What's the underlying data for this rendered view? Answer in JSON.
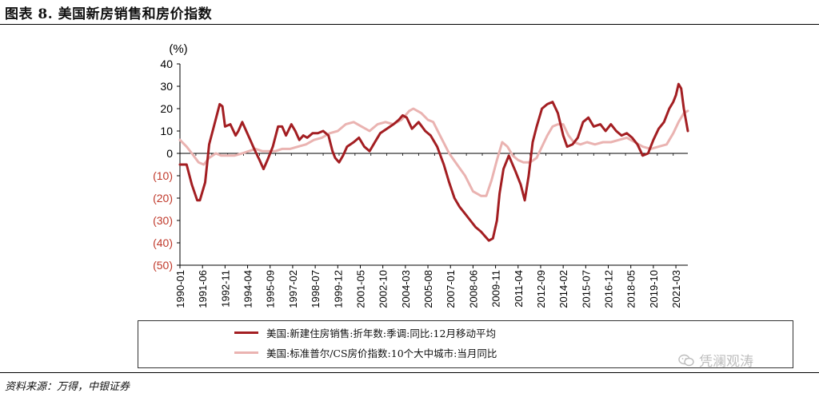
{
  "title": "图表 8. 美国新房销售和房价指数",
  "source": "资料来源：万得，中银证券",
  "watermark": "凭澜观涛",
  "colors": {
    "series1": "#a31e22",
    "series2": "#eab3b1",
    "negative_tick": "#c0392b"
  },
  "chart_data": {
    "type": "line",
    "unit_label": "(%)",
    "ylim": [
      -50,
      40
    ],
    "yticks": [
      40,
      30,
      20,
      10,
      0,
      -10,
      -20,
      -30,
      -40,
      -50
    ],
    "ytick_labels": [
      "40",
      "30",
      "20",
      "10",
      "0",
      "(10)",
      "(20)",
      "(30)",
      "(40)",
      "(50)"
    ],
    "xlim": [
      "1990-01",
      "2021-12"
    ],
    "xtick_labels": [
      "1990-01",
      "1991-06",
      "1992-11",
      "1994-04",
      "1995-09",
      "1997-02",
      "1998-07",
      "1999-12",
      "2001-05",
      "2002-10",
      "2004-03",
      "2005-08",
      "2007-01",
      "2008-06",
      "2009-11",
      "2011-04",
      "2012-09",
      "2014-02",
      "2015-07",
      "2016-12",
      "2018-05",
      "2019-10",
      "2021-03"
    ],
    "grid": false,
    "legend_position": "bottom",
    "series": [
      {
        "name": "美国:新建住房销售:折年数:季调:同比:12月移动平均",
        "points": [
          [
            "1990-01",
            -5
          ],
          [
            "1990-06",
            -5
          ],
          [
            "1990-10",
            -14
          ],
          [
            "1991-02",
            -21
          ],
          [
            "1991-04",
            -21
          ],
          [
            "1991-08",
            -13
          ],
          [
            "1991-11",
            4
          ],
          [
            "1992-03",
            13
          ],
          [
            "1992-07",
            22
          ],
          [
            "1992-09",
            21
          ],
          [
            "1992-11",
            12
          ],
          [
            "1993-03",
            13
          ],
          [
            "1993-07",
            8
          ],
          [
            "1993-09",
            10
          ],
          [
            "1993-12",
            14
          ],
          [
            "1994-03",
            10
          ],
          [
            "1994-06",
            6
          ],
          [
            "1994-09",
            2
          ],
          [
            "1995-01",
            -3
          ],
          [
            "1995-04",
            -7
          ],
          [
            "1995-07",
            -3
          ],
          [
            "1995-11",
            3
          ],
          [
            "1996-03",
            12
          ],
          [
            "1996-06",
            12
          ],
          [
            "1996-09",
            8
          ],
          [
            "1997-01",
            13
          ],
          [
            "1997-04",
            10
          ],
          [
            "1997-07",
            6
          ],
          [
            "1997-10",
            8
          ],
          [
            "1998-01",
            7
          ],
          [
            "1998-05",
            9
          ],
          [
            "1998-09",
            9
          ],
          [
            "1999-01",
            10
          ],
          [
            "1999-05",
            8
          ],
          [
            "1999-08",
            1
          ],
          [
            "1999-10",
            -2
          ],
          [
            "2000-01",
            -4
          ],
          [
            "2000-04",
            -1
          ],
          [
            "2000-07",
            3
          ],
          [
            "2000-12",
            5
          ],
          [
            "2001-04",
            7
          ],
          [
            "2001-08",
            3
          ],
          [
            "2001-12",
            1
          ],
          [
            "2002-04",
            5
          ],
          [
            "2002-08",
            9
          ],
          [
            "2003-01",
            11
          ],
          [
            "2003-06",
            13
          ],
          [
            "2003-10",
            15
          ],
          [
            "2004-01",
            17
          ],
          [
            "2004-04",
            16
          ],
          [
            "2004-08",
            11
          ],
          [
            "2005-01",
            14
          ],
          [
            "2005-06",
            10
          ],
          [
            "2005-10",
            8
          ],
          [
            "2006-03",
            3
          ],
          [
            "2006-08",
            -5
          ],
          [
            "2006-12",
            -13
          ],
          [
            "2007-04",
            -20
          ],
          [
            "2007-08",
            -24
          ],
          [
            "2007-12",
            -27
          ],
          [
            "2008-04",
            -30
          ],
          [
            "2008-08",
            -33
          ],
          [
            "2008-12",
            -35
          ],
          [
            "2009-03",
            -37
          ],
          [
            "2009-06",
            -39
          ],
          [
            "2009-09",
            -38
          ],
          [
            "2009-12",
            -30
          ],
          [
            "2010-02",
            -18
          ],
          [
            "2010-05",
            -7
          ],
          [
            "2010-09",
            -1
          ],
          [
            "2011-02",
            -8
          ],
          [
            "2011-06",
            -14
          ],
          [
            "2011-09",
            -21
          ],
          [
            "2011-12",
            -10
          ],
          [
            "2012-03",
            5
          ],
          [
            "2012-06",
            12
          ],
          [
            "2012-10",
            20
          ],
          [
            "2013-02",
            22
          ],
          [
            "2013-06",
            23
          ],
          [
            "2013-10",
            18
          ],
          [
            "2014-02",
            8
          ],
          [
            "2014-05",
            3
          ],
          [
            "2014-09",
            4
          ],
          [
            "2015-01",
            7
          ],
          [
            "2015-05",
            14
          ],
          [
            "2015-09",
            16
          ],
          [
            "2016-01",
            12
          ],
          [
            "2016-06",
            13
          ],
          [
            "2016-10",
            10
          ],
          [
            "2017-02",
            13
          ],
          [
            "2017-06",
            10
          ],
          [
            "2017-10",
            8
          ],
          [
            "2018-02",
            9
          ],
          [
            "2018-06",
            7
          ],
          [
            "2018-10",
            4
          ],
          [
            "2019-02",
            -1
          ],
          [
            "2019-06",
            0
          ],
          [
            "2019-10",
            6
          ],
          [
            "2020-02",
            11
          ],
          [
            "2020-06",
            14
          ],
          [
            "2020-10",
            20
          ],
          [
            "2021-01",
            23
          ],
          [
            "2021-03",
            26
          ],
          [
            "2021-05",
            31
          ],
          [
            "2021-07",
            29
          ],
          [
            "2021-09",
            20
          ],
          [
            "2021-12",
            10
          ]
        ]
      },
      {
        "name": "美国:标准普尔/CS房价指数:10个大中城市:当月同比",
        "points": [
          [
            "1990-01",
            6
          ],
          [
            "1990-06",
            3
          ],
          [
            "1990-10",
            0
          ],
          [
            "1991-03",
            -4
          ],
          [
            "1991-07",
            -5
          ],
          [
            "1991-11",
            -2
          ],
          [
            "1992-04",
            0
          ],
          [
            "1992-08",
            -1
          ],
          [
            "1993-01",
            -1
          ],
          [
            "1993-06",
            -1
          ],
          [
            "1993-12",
            0
          ],
          [
            "1994-05",
            1
          ],
          [
            "1994-10",
            2
          ],
          [
            "1995-03",
            1
          ],
          [
            "1995-08",
            1
          ],
          [
            "1996-01",
            1
          ],
          [
            "1996-06",
            2
          ],
          [
            "1996-12",
            2
          ],
          [
            "1997-06",
            3
          ],
          [
            "1997-12",
            4
          ],
          [
            "1998-06",
            6
          ],
          [
            "1998-12",
            7
          ],
          [
            "1999-06",
            9
          ],
          [
            "1999-12",
            10
          ],
          [
            "2000-06",
            13
          ],
          [
            "2000-12",
            14
          ],
          [
            "2001-06",
            12
          ],
          [
            "2001-12",
            10
          ],
          [
            "2002-06",
            13
          ],
          [
            "2002-12",
            14
          ],
          [
            "2003-06",
            13
          ],
          [
            "2003-12",
            15
          ],
          [
            "2004-03",
            17
          ],
          [
            "2004-06",
            19
          ],
          [
            "2004-09",
            20
          ],
          [
            "2005-03",
            18
          ],
          [
            "2005-08",
            15
          ],
          [
            "2005-12",
            14
          ],
          [
            "2006-06",
            7
          ],
          [
            "2006-12",
            0
          ],
          [
            "2007-06",
            -5
          ],
          [
            "2007-12",
            -10
          ],
          [
            "2008-06",
            -17
          ],
          [
            "2008-12",
            -19
          ],
          [
            "2009-04",
            -19
          ],
          [
            "2009-08",
            -12
          ],
          [
            "2009-12",
            -3
          ],
          [
            "2010-04",
            5
          ],
          [
            "2010-08",
            3
          ],
          [
            "2010-12",
            -1
          ],
          [
            "2011-04",
            -3
          ],
          [
            "2011-08",
            -4
          ],
          [
            "2012-01",
            -4
          ],
          [
            "2012-06",
            -2
          ],
          [
            "2012-10",
            3
          ],
          [
            "2013-02",
            8
          ],
          [
            "2013-06",
            12
          ],
          [
            "2013-10",
            13
          ],
          [
            "2014-02",
            13
          ],
          [
            "2014-06",
            8
          ],
          [
            "2014-10",
            5
          ],
          [
            "2015-03",
            4
          ],
          [
            "2015-08",
            5
          ],
          [
            "2016-02",
            4
          ],
          [
            "2016-08",
            5
          ],
          [
            "2017-02",
            5
          ],
          [
            "2017-08",
            6
          ],
          [
            "2018-02",
            7
          ],
          [
            "2018-08",
            5
          ],
          [
            "2019-02",
            3
          ],
          [
            "2019-08",
            2
          ],
          [
            "2020-02",
            3
          ],
          [
            "2020-08",
            4
          ],
          [
            "2021-01",
            9
          ],
          [
            "2021-05",
            14
          ],
          [
            "2021-09",
            18
          ],
          [
            "2021-12",
            19
          ]
        ]
      }
    ]
  }
}
